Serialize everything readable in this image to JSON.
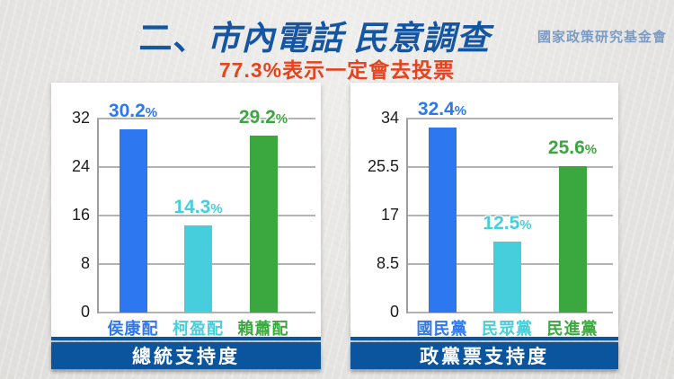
{
  "header": {
    "title_prefix": "二、",
    "title_main": "市內電話 民意調查",
    "subtitle": "77.3%表示一定會去投票",
    "org": "國家政策研究基金會"
  },
  "colors": {
    "title_blue": "#1556a3",
    "subtitle_red": "#e8421c",
    "org_blue": "#7b9cc6",
    "banner_blue": "#0b559e",
    "bar_blue": "#2d78f0",
    "bar_cyan": "#47cedd",
    "bar_green": "#3ba73f",
    "gridline_gray": "#b3b3b3"
  },
  "chart_data": [
    {
      "type": "bar",
      "title": "總統支持度",
      "categories": [
        "侯康配",
        "柯盈配",
        "賴蕭配"
      ],
      "values": [
        30.2,
        14.3,
        29.2
      ],
      "value_suffix": "%",
      "bar_colors": [
        "#2d78f0",
        "#47cedd",
        "#3ba73f"
      ],
      "ylim": [
        0,
        32
      ],
      "yticks": [
        0,
        8,
        16,
        24,
        32
      ],
      "grid": true,
      "legend": "none"
    },
    {
      "type": "bar",
      "title": "政黨票支持度",
      "categories": [
        "國民黨",
        "民眾黨",
        "民進黨"
      ],
      "values": [
        32.4,
        12.5,
        25.6
      ],
      "value_suffix": "%",
      "bar_colors": [
        "#2d78f0",
        "#47cedd",
        "#3ba73f"
      ],
      "ylim": [
        0,
        34
      ],
      "yticks": [
        0,
        8.5,
        17,
        25.5,
        34
      ],
      "grid": true,
      "legend": "none"
    }
  ]
}
